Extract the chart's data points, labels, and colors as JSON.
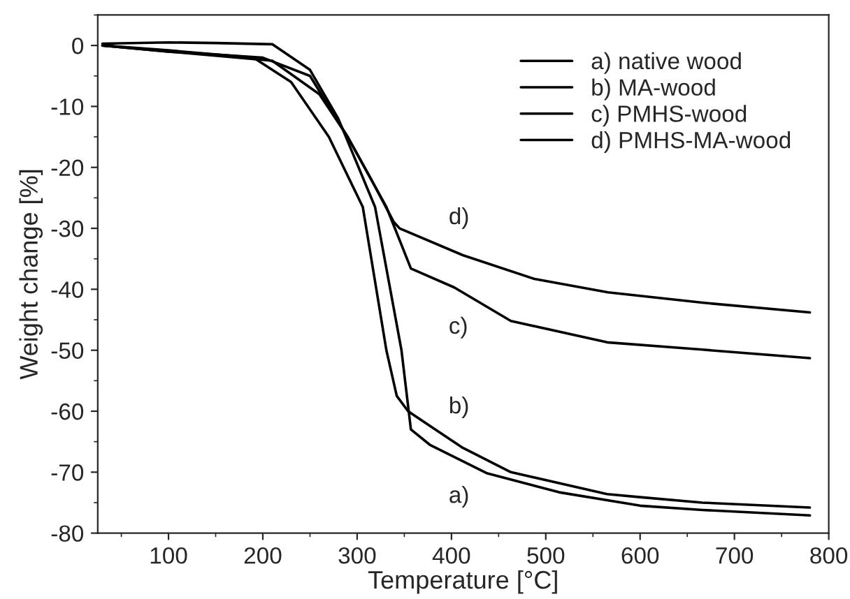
{
  "chart_data": {
    "type": "line",
    "xlabel": "Temperature [°C]",
    "ylabel": "Weight change [%]",
    "xlim": [
      25,
      800
    ],
    "ylim": [
      -80,
      5
    ],
    "xticks": [
      100,
      200,
      300,
      400,
      500,
      600,
      700,
      800
    ],
    "yticks": [
      0,
      -10,
      -20,
      -30,
      -40,
      -50,
      -60,
      -70,
      -80
    ],
    "legend": "top right",
    "grid": false,
    "line_style": "solid",
    "marker": "none",
    "series": [
      {
        "name": "a) native wood",
        "color": "#000000",
        "x": [
          30,
          100,
          150,
          210,
          250,
          280,
          319,
          347,
          357,
          377,
          438,
          514,
          600,
          666,
          780
        ],
        "values": [
          0.3,
          0.5,
          0.4,
          0.2,
          -4,
          -12,
          -26.5,
          -50,
          -63,
          -65.5,
          -70.2,
          -73.3,
          -75.5,
          -76.2,
          -77.1
        ]
      },
      {
        "name": "b) MA-wood",
        "color": "#000000",
        "x": [
          30,
          100,
          190,
          230,
          270,
          306,
          331,
          342,
          354,
          376,
          412,
          463,
          565,
          600,
          666,
          780
        ],
        "values": [
          0,
          -0.8,
          -2,
          -6,
          -15,
          -26.5,
          -50,
          -57.5,
          -60,
          -62.3,
          -66,
          -70,
          -73.6,
          -74.1,
          -75,
          -75.8
        ]
      },
      {
        "name": "c) PMHS-wood",
        "color": "#000000",
        "x": [
          30,
          100,
          200,
          250,
          290,
          331,
          347,
          357,
          403,
          463,
          565,
          666,
          780
        ],
        "values": [
          0,
          -1,
          -2,
          -5,
          -15,
          -26.5,
          -32.7,
          -36.6,
          -39.7,
          -45.2,
          -48.7,
          -49.9,
          -51.3
        ]
      },
      {
        "name": "d) PMHS-MA-wood",
        "color": "#000000",
        "x": [
          30,
          100,
          210,
          260,
          290,
          315,
          339,
          345,
          412,
          488,
          566,
          666,
          780
        ],
        "values": [
          0,
          -1,
          -2.5,
          -8,
          -15,
          -22,
          -29,
          -30,
          -34.4,
          -38.3,
          -40.5,
          -42.2,
          -43.8
        ]
      }
    ],
    "annotations": [
      "a)",
      "b)",
      "c)",
      "d)"
    ]
  }
}
